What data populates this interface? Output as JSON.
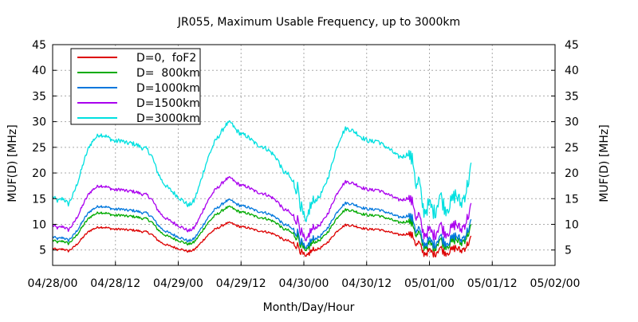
{
  "chart_data": {
    "type": "line",
    "title": "JR055, Maximum Usable Frequency, up to 3000km",
    "xlabel": "Month/Day/Hour",
    "ylabel_left": "MUF(D) [MHz]",
    "ylabel_right": "MUF(D) [MHz]",
    "ylim": [
      2,
      45
    ],
    "xlim_hours": [
      0,
      96
    ],
    "x_ticks": [
      {
        "hour": 0,
        "label": "04/28/00"
      },
      {
        "hour": 12,
        "label": "04/28/12"
      },
      {
        "hour": 24,
        "label": "04/29/00"
      },
      {
        "hour": 36,
        "label": "04/29/12"
      },
      {
        "hour": 48,
        "label": "04/30/00"
      },
      {
        "hour": 60,
        "label": "04/30/12"
      },
      {
        "hour": 72,
        "label": "05/01/00"
      },
      {
        "hour": 84,
        "label": "05/01/12"
      },
      {
        "hour": 96,
        "label": "05/02/00"
      }
    ],
    "y_ticks": [
      5,
      10,
      15,
      20,
      25,
      30,
      35,
      40,
      45
    ],
    "grid": true,
    "legend_position": "top-left",
    "base_profile_hours": [
      0,
      1,
      2,
      3,
      4,
      5,
      6,
      7,
      8,
      9,
      10,
      11,
      12,
      13,
      14,
      15,
      16,
      17,
      18,
      19,
      20,
      21,
      22,
      23,
      24,
      25,
      26,
      27,
      28,
      29,
      30,
      31,
      32,
      33,
      34,
      35,
      36,
      37,
      38,
      39,
      40,
      41,
      42,
      43,
      44,
      45,
      46,
      47,
      47.5,
      48,
      48.5,
      49,
      50,
      51,
      52,
      53,
      54,
      55,
      56,
      57,
      58,
      59,
      60,
      61,
      62,
      63,
      64,
      65,
      66,
      67,
      68,
      69,
      69.5,
      70,
      70.5,
      71,
      72,
      73,
      74,
      75,
      76,
      77,
      78,
      79,
      80
    ],
    "base_profile_fof2": [
      5.3,
      5.0,
      5.2,
      4.8,
      5.5,
      6.5,
      7.7,
      8.7,
      9.2,
      9.5,
      9.4,
      9.2,
      9.0,
      9.1,
      8.9,
      8.9,
      8.8,
      8.6,
      8.5,
      8.0,
      7.0,
      6.3,
      5.9,
      5.6,
      5.3,
      5.0,
      4.7,
      5.0,
      6.0,
      7.2,
      8.2,
      9.0,
      9.5,
      10.1,
      10.3,
      9.8,
      9.5,
      9.4,
      9.1,
      8.8,
      8.7,
      8.5,
      8.2,
      7.8,
      7.0,
      6.8,
      6.2,
      5.8,
      4.5,
      3.8,
      3.2,
      4.5,
      5.0,
      5.3,
      6.0,
      7.0,
      8.3,
      9.3,
      9.9,
      9.8,
      9.6,
      9.3,
      9.1,
      9.0,
      9.1,
      8.8,
      8.6,
      8.3,
      8.0,
      8.0,
      8.2,
      7.5,
      5.8,
      6.5,
      5.0,
      4.3,
      4.8,
      4.2,
      5.5,
      4.5,
      4.8,
      5.5,
      4.8,
      5.7,
      7.3
    ],
    "series": [
      {
        "name": "D=0,  foF2",
        "color": "#dd0000",
        "multiplier": 1.0
      },
      {
        "name": "D=  800km",
        "color": "#00aa00",
        "multiplier": 1.3
      },
      {
        "name": "D=1000km",
        "color": "#0077dd",
        "multiplier": 1.43
      },
      {
        "name": "D=1500km",
        "color": "#aa00ee",
        "multiplier": 1.85
      },
      {
        "name": "D=3000km",
        "color": "#00e0e0",
        "multiplier": 2.9
      }
    ]
  }
}
